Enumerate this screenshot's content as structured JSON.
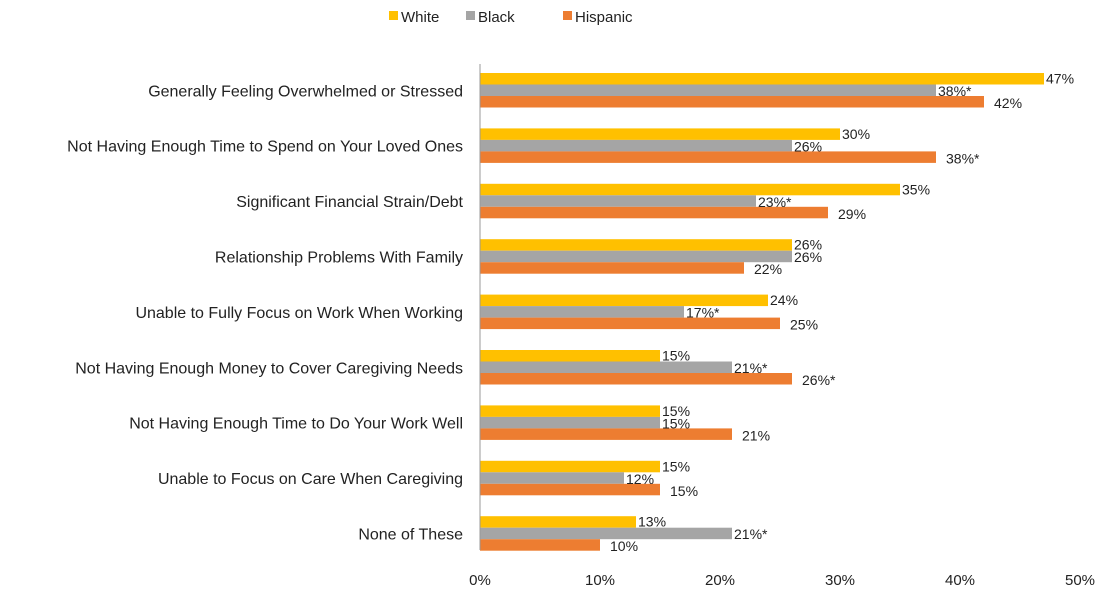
{
  "chart_data": {
    "type": "bar",
    "orientation": "horizontal",
    "title": "",
    "xlabel": "",
    "ylabel": "",
    "xlim": [
      0,
      50
    ],
    "x_ticks": [
      "0%",
      "10%",
      "20%",
      "30%",
      "40%",
      "50%"
    ],
    "grid": false,
    "legend_position": "top",
    "categories": [
      "Generally Feeling Overwhelmed or Stressed",
      "Not Having Enough Time to Spend on Your Loved Ones",
      "Significant Financial Strain/Debt",
      "Relationship Problems With Family",
      "Unable to Fully Focus on Work When Working",
      "Not Having Enough Money to Cover Caregiving Needs",
      "Not Having Enough Time to Do Your Work Well",
      "Unable to Focus on Care When Caregiving",
      "None of These"
    ],
    "series": [
      {
        "name": "White",
        "color": "#FFC000",
        "values": [
          47,
          30,
          35,
          26,
          24,
          15,
          15,
          15,
          13
        ],
        "labels": [
          "47%",
          "30%",
          "35%",
          "26%",
          "24%",
          "15%",
          "15%",
          "15%",
          "13%"
        ]
      },
      {
        "name": "Black",
        "color": "#A5A5A5",
        "values": [
          38,
          26,
          23,
          26,
          17,
          21,
          15,
          12,
          21
        ],
        "labels": [
          "38%*",
          "26%",
          "23%*",
          "26%",
          "17%*",
          "21%*",
          "15%",
          "12%",
          "21%*"
        ]
      },
      {
        "name": "Hispanic",
        "color": "#ED7D31",
        "values": [
          42,
          38,
          29,
          22,
          25,
          26,
          21,
          15,
          10
        ],
        "labels": [
          "42%",
          "38%*",
          "29%",
          "22%",
          "25%",
          "26%*",
          "21%",
          "15%",
          "10%"
        ]
      }
    ]
  }
}
